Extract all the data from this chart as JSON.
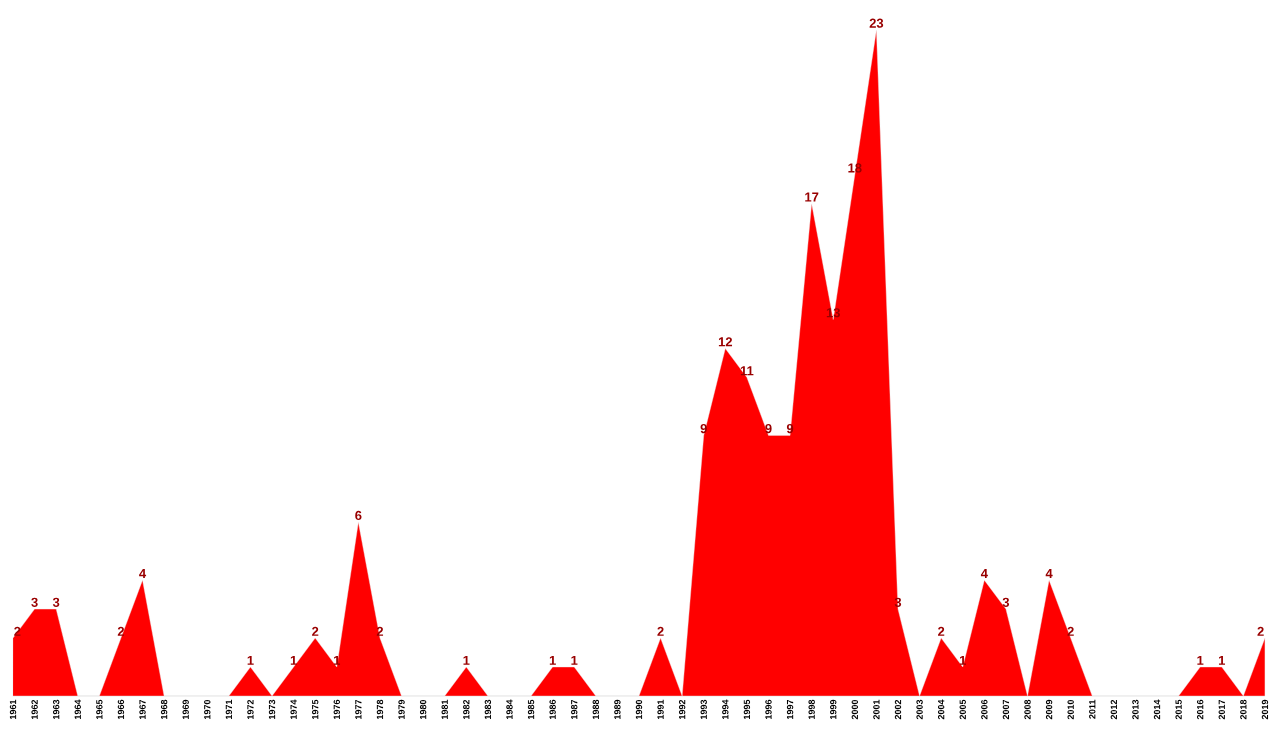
{
  "chart_data": {
    "type": "area",
    "color": "#ff0000",
    "categories": [
      "1961",
      "1962",
      "1963",
      "1964",
      "1965",
      "1966",
      "1967",
      "1968",
      "1969",
      "1970",
      "1971",
      "1972",
      "1973",
      "1974",
      "1975",
      "1976",
      "1977",
      "1978",
      "1979",
      "1980",
      "1981",
      "1982",
      "1983",
      "1984",
      "1985",
      "1986",
      "1987",
      "1988",
      "1989",
      "1990",
      "1991",
      "1992",
      "1993",
      "1994",
      "1995",
      "1996",
      "1997",
      "1998",
      "1999",
      "2000",
      "2001",
      "2002",
      "2003",
      "2004",
      "2005",
      "2006",
      "2007",
      "2008",
      "2009",
      "2010",
      "2011",
      "2012",
      "2013",
      "2014",
      "2015",
      "2016",
      "2017",
      "2018",
      "2019"
    ],
    "values": [
      2,
      3,
      3,
      0,
      0,
      2,
      4,
      0,
      0,
      0,
      0,
      1,
      0,
      1,
      2,
      1,
      6,
      2,
      0,
      0,
      0,
      1,
      0,
      0,
      0,
      1,
      1,
      0,
      0,
      0,
      2,
      0,
      9,
      12,
      11,
      9,
      9,
      17,
      13,
      18,
      23,
      3,
      0,
      2,
      1,
      4,
      3,
      0,
      4,
      2,
      0,
      0,
      0,
      0,
      0,
      1,
      1,
      0,
      2
    ],
    "value_labels": [
      "2",
      "3",
      "3",
      null,
      null,
      "2",
      "4",
      null,
      null,
      null,
      null,
      "1",
      null,
      "1",
      "2",
      "1",
      "6",
      "2",
      null,
      null,
      null,
      "1",
      null,
      null,
      null,
      "1",
      "1",
      null,
      null,
      null,
      "2",
      null,
      "9",
      "12",
      "11",
      "9",
      "9",
      "17",
      "13",
      "18",
      "23",
      "3",
      null,
      "2",
      "1",
      "4",
      "3",
      null,
      "4",
      "2",
      null,
      null,
      null,
      null,
      null,
      "1",
      "1",
      null,
      "2"
    ]
  }
}
